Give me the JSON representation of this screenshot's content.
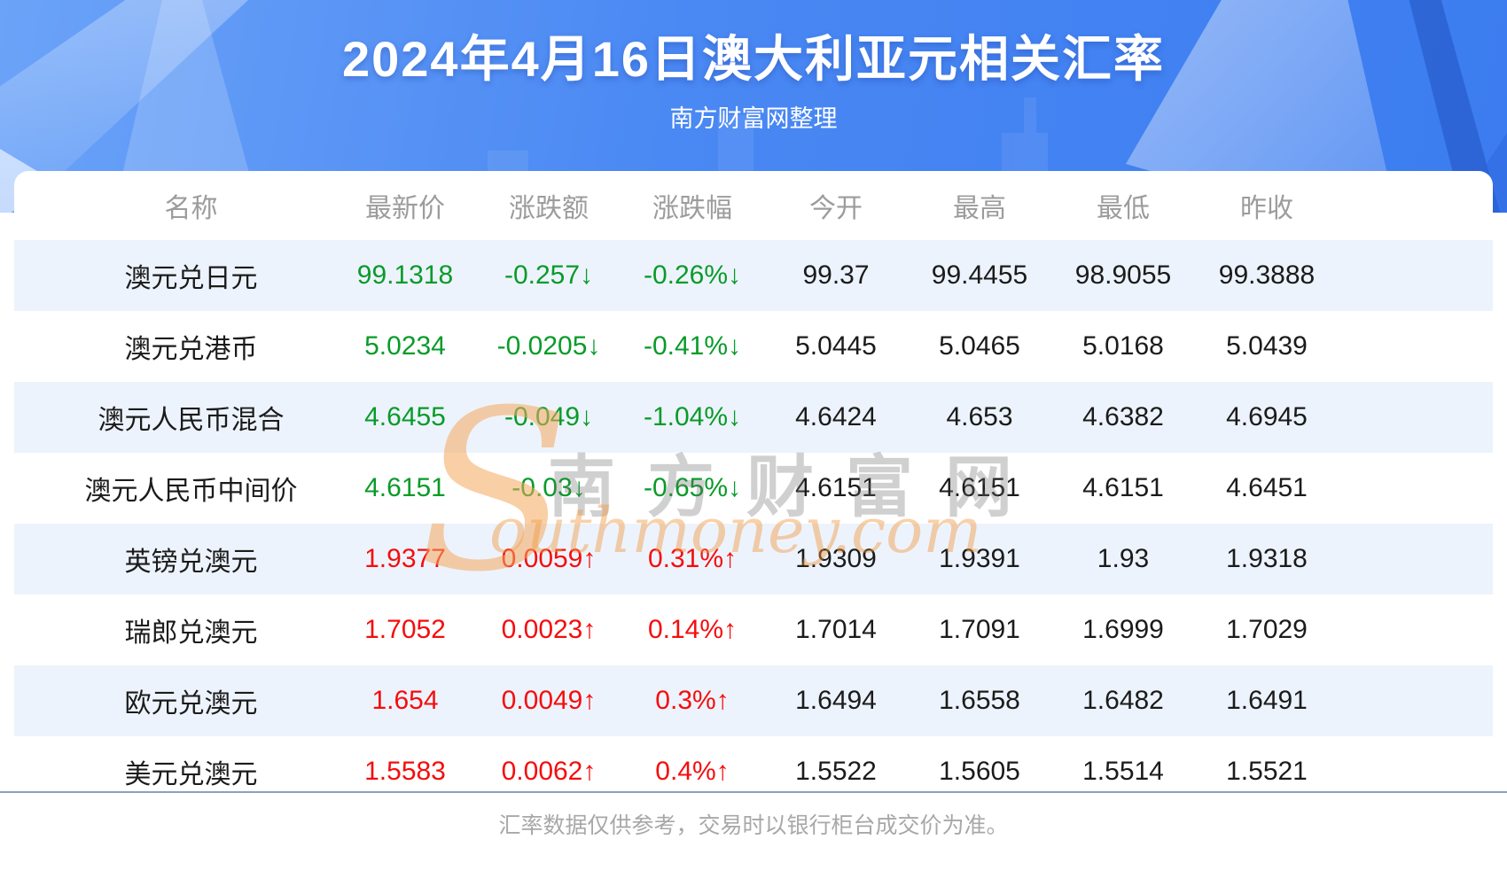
{
  "page": {
    "title": "2024年4月16日澳大利亚元相关汇率",
    "subtitle": "南方财富网整理",
    "footer_note": "汇率数据仅供参考，交易时以银行柜台成交价为准。"
  },
  "watermark": {
    "s_glyph": "S",
    "cn_text": "南方财富网",
    "en_text": "outhmoney.com"
  },
  "colors": {
    "up_red": "#f50d0d",
    "down_green": "#089b29",
    "hero_blue": "#4a88f3",
    "row_stripe": "#edf3fc",
    "header_text": "#9c9c9c"
  },
  "table": {
    "columns": [
      "名称",
      "最新价",
      "涨跌额",
      "涨跌幅",
      "今开",
      "最高",
      "最低",
      "昨收"
    ],
    "rows": [
      {
        "name": "澳元兑日元",
        "last": "99.1318",
        "change": "-0.257↓",
        "pct": "-0.26%↓",
        "open": "99.37",
        "high": "99.4455",
        "low": "98.9055",
        "prev": "99.3888",
        "trend": "down"
      },
      {
        "name": "澳元兑港币",
        "last": "5.0234",
        "change": "-0.0205↓",
        "pct": "-0.41%↓",
        "open": "5.0445",
        "high": "5.0465",
        "low": "5.0168",
        "prev": "5.0439",
        "trend": "down"
      },
      {
        "name": "澳元人民币混合",
        "last": "4.6455",
        "change": "-0.049↓",
        "pct": "-1.04%↓",
        "open": "4.6424",
        "high": "4.653",
        "low": "4.6382",
        "prev": "4.6945",
        "trend": "down"
      },
      {
        "name": "澳元人民币中间价",
        "last": "4.6151",
        "change": "-0.03↓",
        "pct": "-0.65%↓",
        "open": "4.6151",
        "high": "4.6151",
        "low": "4.6151",
        "prev": "4.6451",
        "trend": "down"
      },
      {
        "name": "英镑兑澳元",
        "last": "1.9377",
        "change": "0.0059↑",
        "pct": "0.31%↑",
        "open": "1.9309",
        "high": "1.9391",
        "low": "1.93",
        "prev": "1.9318",
        "trend": "up"
      },
      {
        "name": "瑞郎兑澳元",
        "last": "1.7052",
        "change": "0.0023↑",
        "pct": "0.14%↑",
        "open": "1.7014",
        "high": "1.7091",
        "low": "1.6999",
        "prev": "1.7029",
        "trend": "up"
      },
      {
        "name": "欧元兑澳元",
        "last": "1.654",
        "change": "0.0049↑",
        "pct": "0.3%↑",
        "open": "1.6494",
        "high": "1.6558",
        "low": "1.6482",
        "prev": "1.6491",
        "trend": "up"
      },
      {
        "name": "美元兑澳元",
        "last": "1.5583",
        "change": "0.0062↑",
        "pct": "0.4%↑",
        "open": "1.5522",
        "high": "1.5605",
        "low": "1.5514",
        "prev": "1.5521",
        "trend": "up"
      }
    ]
  }
}
